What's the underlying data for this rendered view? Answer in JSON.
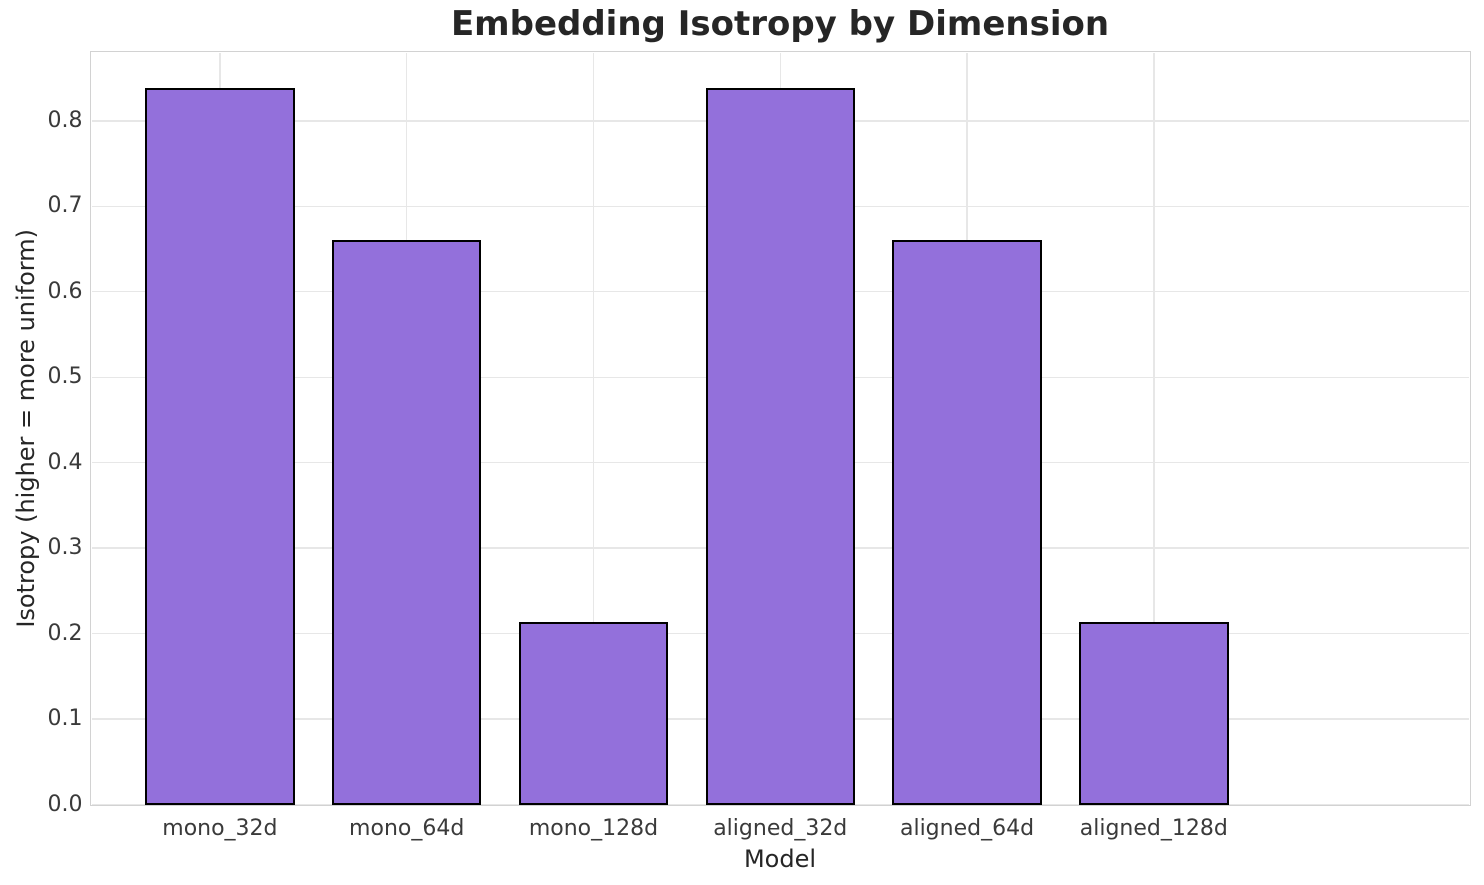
{
  "chart_data": {
    "type": "bar",
    "title": "Embedding Isotropy by Dimension",
    "xlabel": "Model",
    "ylabel": "Isotropy (higher = more uniform)",
    "categories": [
      "mono_32d",
      "mono_64d",
      "mono_128d",
      "aligned_32d",
      "aligned_64d",
      "aligned_128d"
    ],
    "values": [
      0.838,
      0.661,
      0.214,
      0.838,
      0.661,
      0.214
    ],
    "ylim": [
      0,
      0.88
    ],
    "yticks": [
      0.0,
      0.1,
      0.2,
      0.3,
      0.4,
      0.5,
      0.6,
      0.7,
      0.8
    ],
    "ytick_labels": [
      "0.0",
      "0.1",
      "0.2",
      "0.3",
      "0.4",
      "0.5",
      "0.6",
      "0.7",
      "0.8"
    ],
    "grid": true,
    "legend": "none",
    "bar_color": "#9370DB",
    "bar_edge_color": "#000000",
    "grid_color": "#e7e7e7",
    "spine_color": "#d2d2d2",
    "text_color": "#262626",
    "bar_width_slots": 0.8,
    "x_margin_slots": 0.6875
  }
}
